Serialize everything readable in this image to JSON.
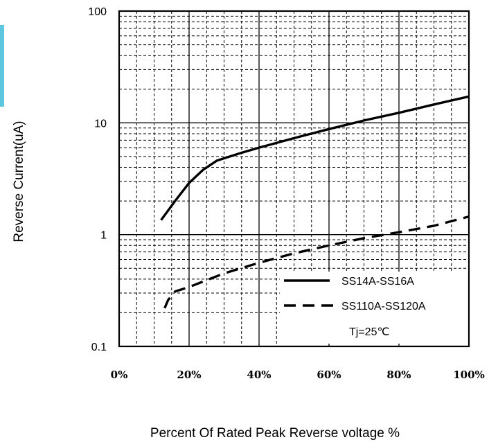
{
  "chart_data": {
    "type": "line",
    "xlabel": "Percent Of Rated Peak Reverse voltage %",
    "ylabel": "Reverse Current(uA)",
    "x_ticks": [
      "0%",
      "20%",
      "40%",
      "60%",
      "80%",
      "100%"
    ],
    "y_ticks": [
      "0.1",
      "1",
      "10",
      "100"
    ],
    "xlim": [
      0,
      100
    ],
    "ylim": [
      0.1,
      100
    ],
    "y_scale": "log",
    "grid": true,
    "legend_position": "bottom-right",
    "series": [
      {
        "name": "SS14A-SS16A",
        "style": "solid",
        "color": "#000000",
        "x": [
          12,
          16,
          20,
          24,
          28,
          35,
          40,
          50,
          60,
          70,
          80,
          90,
          100
        ],
        "y": [
          1.35,
          2.0,
          2.9,
          3.8,
          4.6,
          5.4,
          6.0,
          7.3,
          8.8,
          10.5,
          12.3,
          14.6,
          17.2
        ]
      },
      {
        "name": "SS110A-SS120A",
        "style": "dashed",
        "color": "#000000",
        "x": [
          13,
          14,
          16,
          20,
          30,
          40,
          50,
          60,
          70,
          80,
          90,
          100
        ],
        "y": [
          0.22,
          0.26,
          0.31,
          0.34,
          0.45,
          0.56,
          0.68,
          0.8,
          0.93,
          1.05,
          1.2,
          1.45
        ]
      }
    ],
    "annotation": "Tj=25℃"
  }
}
